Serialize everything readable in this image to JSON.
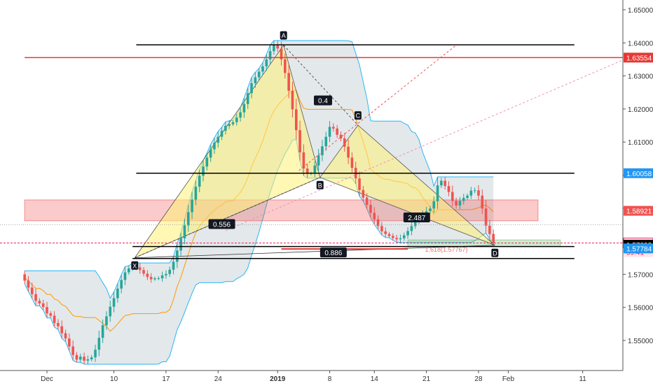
{
  "chart_data": {
    "type": "candlestick",
    "title": "",
    "xlabel": "",
    "ylabel": "",
    "ylim": [
      1.5418,
      1.6548
    ],
    "y_ticks": [
      "1.65000",
      "1.64000",
      "1.63000",
      "1.62000",
      "1.61000",
      "1.60000",
      "1.59000",
      "1.58000",
      "1.57000",
      "1.56000",
      "1.55000"
    ],
    "x_ticks": [
      {
        "label": "Dec",
        "day": 0
      },
      {
        "label": "10",
        "day": 9
      },
      {
        "label": "17",
        "day": 16
      },
      {
        "label": "24",
        "day": 23
      },
      {
        "label": "2019",
        "day": 31
      },
      {
        "label": "8",
        "day": 38
      },
      {
        "label": "14",
        "day": 44
      },
      {
        "label": "21",
        "day": 51
      },
      {
        "label": "28",
        "day": 58
      },
      {
        "label": "Feb",
        "day": 62
      },
      {
        "label": "11",
        "day": 72
      }
    ],
    "price_tags": [
      {
        "label": "1.63554",
        "value": 1.63554,
        "color": "#e53935",
        "text_color": "#ffffff"
      },
      {
        "label": "1.60058",
        "value": 1.60058,
        "color": "#2196f3",
        "text_color": "#ffffff"
      },
      {
        "label": "1.58921",
        "value": 1.58921,
        "color": "#ef5350",
        "text_color": "#ffffff"
      },
      {
        "label": "1.57947",
        "value": 1.57947,
        "color": "#ffffff",
        "text_color": "#e91e63"
      },
      {
        "label": "59:41",
        "value": 1.5767,
        "color": "#fce4ec",
        "text_color": "#e91e63"
      },
      {
        "label": "1.57898",
        "value": 1.57898,
        "color": "#000000",
        "text_color": "#ffffff"
      },
      {
        "label": "1.57784",
        "value": 1.57784,
        "color": "#2196f3",
        "text_color": "#ffffff"
      }
    ],
    "horizontal_levels": [
      {
        "price": 1.6394,
        "color": "#000000",
        "from_day": 12,
        "to_day": 69
      },
      {
        "price": 1.60058,
        "color": "#000000",
        "from_day": 12,
        "to_day": 69
      },
      {
        "price": 1.5784,
        "color": "#000000",
        "from_day": 11.5,
        "to_day": 69
      },
      {
        "price": 1.5748,
        "color": "#000000",
        "from_day": 11.5,
        "to_day": 69
      },
      {
        "price": 1.63554,
        "color": "#e53935",
        "from_day": -3,
        "to_day": 69
      }
    ],
    "zones": [
      {
        "name": "supply-zone",
        "top": 1.5925,
        "bottom": 1.5862,
        "from_day": -3,
        "to_day": 66,
        "fill": "#ef5350"
      },
      {
        "name": "target-zone",
        "top": 1.5804,
        "bottom": 1.5784,
        "from_day": 48.5,
        "to_day": 69,
        "fill": "#66bb6a"
      }
    ],
    "pattern_points": [
      {
        "label": "X",
        "day": 11.8,
        "price": 1.575
      },
      {
        "label": "A",
        "day": 31.8,
        "price": 1.6393
      },
      {
        "label": "B",
        "day": 36.7,
        "price": 1.5993
      },
      {
        "label": "C",
        "day": 41.8,
        "price": 1.6151
      },
      {
        "label": "D",
        "day": 60.2,
        "price": 1.5788
      }
    ],
    "ratios": [
      {
        "label": "0.4",
        "day": 37.1,
        "price": 1.6226
      },
      {
        "label": "0.556",
        "day": 23.5,
        "price": 1.5852
      },
      {
        "label": "2.487",
        "day": 49.7,
        "price": 1.5872
      },
      {
        "label": "0.886",
        "day": 38.5,
        "price": 1.5766
      }
    ],
    "fib_label": "1.618(1.57767)",
    "candles": {
      "start_day": -3,
      "step_days": 0.5,
      "opens": [
        1.57,
        1.5681,
        1.566,
        1.564,
        1.562,
        1.5612,
        1.5601,
        1.5582,
        1.5575,
        1.5553,
        1.5543,
        1.5522,
        1.5506,
        1.5482,
        1.5456,
        1.5442,
        1.5451,
        1.5439,
        1.5443,
        1.5449,
        1.5472,
        1.5508,
        1.5546,
        1.5573,
        1.5602,
        1.5628,
        1.5657,
        1.5683,
        1.5706,
        1.5718,
        1.5725,
        1.5721,
        1.5713,
        1.5702,
        1.5692,
        1.5685,
        1.5688,
        1.5688,
        1.5697,
        1.5701,
        1.5714,
        1.5738,
        1.5772,
        1.5809,
        1.5848,
        1.5888,
        1.5926,
        1.5965,
        1.5998,
        1.6026,
        1.6053,
        1.6078,
        1.6098,
        1.6116,
        1.6134,
        1.6149,
        1.6154,
        1.616,
        1.6174,
        1.619,
        1.6215,
        1.6248,
        1.6278,
        1.6296,
        1.6313,
        1.6329,
        1.635,
        1.6375,
        1.6395,
        1.6383,
        1.635,
        1.6309,
        1.6255,
        1.6199,
        1.6136,
        1.6069,
        1.602,
        1.6004,
        1.6006,
        1.6029,
        1.606,
        1.6087,
        1.6116,
        1.6146,
        1.6141,
        1.6122,
        1.6111,
        1.6086,
        1.6053,
        1.6022,
        1.599,
        1.5955,
        1.5932,
        1.591,
        1.5886,
        1.5866,
        1.5846,
        1.583,
        1.5822,
        1.5816,
        1.581,
        1.5806,
        1.5809,
        1.5818,
        1.5831,
        1.5846,
        1.5861,
        1.5873,
        1.5882,
        1.5891,
        1.5899,
        1.5921,
        1.5969,
        1.5983,
        1.5967,
        1.5949,
        1.5922,
        1.5908,
        1.5922,
        1.5931,
        1.5938,
        1.5953,
        1.5954,
        1.5938,
        1.5899,
        1.5847,
        1.5822
      ],
      "closes": [
        1.5681,
        1.566,
        1.564,
        1.562,
        1.5612,
        1.5601,
        1.5582,
        1.5575,
        1.5553,
        1.5543,
        1.5522,
        1.5506,
        1.5482,
        1.5456,
        1.5442,
        1.5451,
        1.5439,
        1.5443,
        1.5449,
        1.5472,
        1.5508,
        1.5546,
        1.5573,
        1.5602,
        1.5628,
        1.5657,
        1.5683,
        1.5706,
        1.5718,
        1.5725,
        1.5721,
        1.5713,
        1.5702,
        1.5692,
        1.5685,
        1.5688,
        1.5688,
        1.5697,
        1.5701,
        1.5714,
        1.5738,
        1.5772,
        1.5809,
        1.5848,
        1.5888,
        1.5926,
        1.5965,
        1.5998,
        1.6026,
        1.6053,
        1.6078,
        1.6098,
        1.6116,
        1.6134,
        1.6149,
        1.6154,
        1.616,
        1.6174,
        1.619,
        1.6215,
        1.6248,
        1.6278,
        1.6296,
        1.6313,
        1.6329,
        1.635,
        1.6375,
        1.6395,
        1.6383,
        1.635,
        1.6309,
        1.6255,
        1.6199,
        1.6136,
        1.6069,
        1.602,
        1.6004,
        1.6006,
        1.6029,
        1.606,
        1.6087,
        1.6116,
        1.6146,
        1.6141,
        1.6122,
        1.6111,
        1.6086,
        1.6053,
        1.6022,
        1.599,
        1.5955,
        1.5932,
        1.591,
        1.5886,
        1.5866,
        1.5846,
        1.583,
        1.5822,
        1.5816,
        1.581,
        1.5806,
        1.5809,
        1.5818,
        1.5831,
        1.5846,
        1.5861,
        1.5873,
        1.5882,
        1.5891,
        1.5899,
        1.5921,
        1.5969,
        1.5983,
        1.5967,
        1.5949,
        1.5922,
        1.5908,
        1.5922,
        1.5931,
        1.5938,
        1.5953,
        1.5954,
        1.5938,
        1.5899,
        1.5847,
        1.5822,
        1.5795
      ]
    },
    "annotation_label": "1.618(1.57767)"
  }
}
